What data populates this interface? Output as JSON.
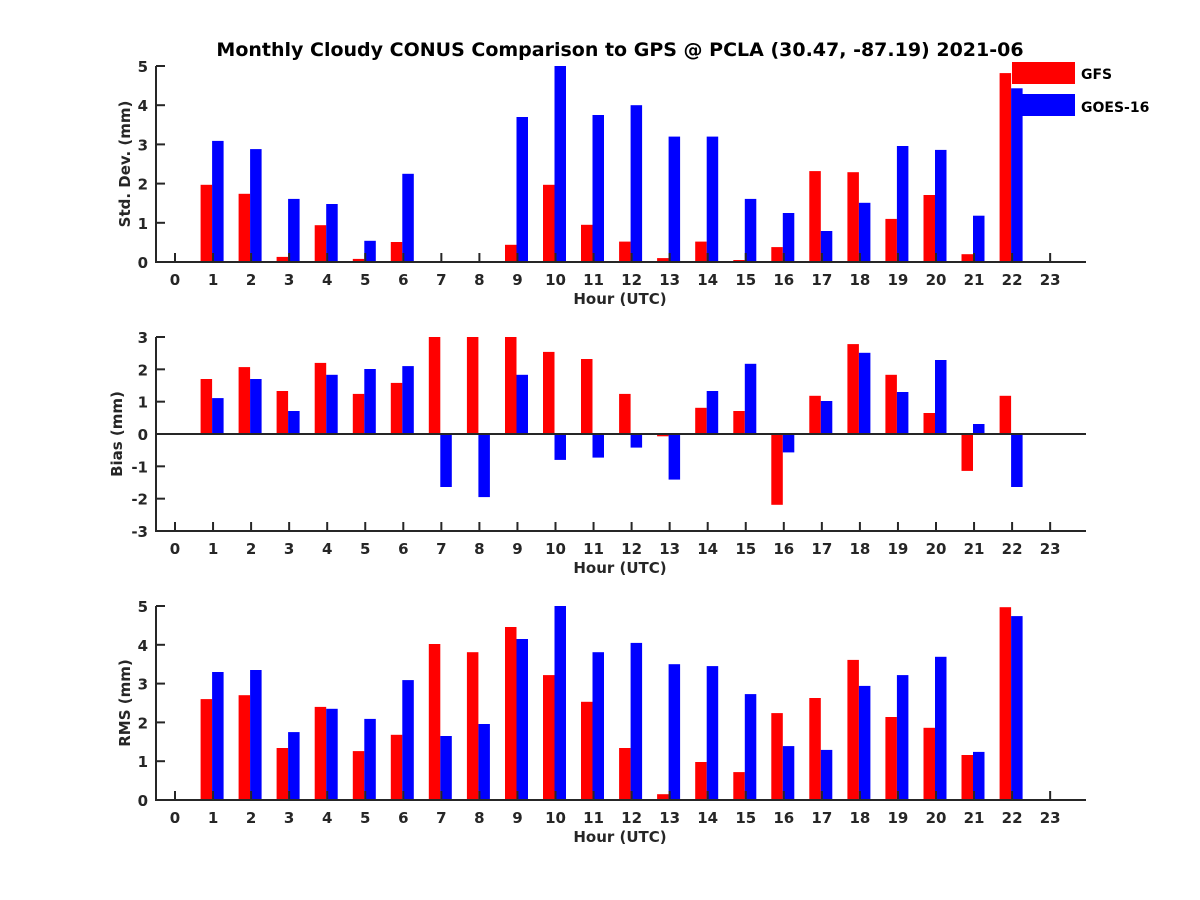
{
  "chart_data": [
    {
      "type": "bar",
      "title": "Monthly Cloudy CONUS Comparison to GPS @ PCLA (30.47, -87.19) 2021-06",
      "xlabel": "Hour (UTC)",
      "ylabel": "Std. Dev. (mm)",
      "ylim": [
        0,
        5
      ],
      "yticks": [
        0,
        1,
        2,
        3,
        4,
        5
      ],
      "categories": [
        "0",
        "1",
        "2",
        "3",
        "4",
        "5",
        "6",
        "7",
        "8",
        "9",
        "10",
        "11",
        "12",
        "13",
        "14",
        "15",
        "16",
        "17",
        "18",
        "19",
        "20",
        "21",
        "22",
        "23"
      ],
      "series": [
        {
          "name": "GFS",
          "color": "#ff0000",
          "values": [
            null,
            1.97,
            1.74,
            0.13,
            0.94,
            0.08,
            0.51,
            null,
            null,
            0.44,
            1.97,
            0.95,
            0.52,
            0.1,
            0.52,
            0.05,
            0.38,
            2.32,
            2.29,
            1.1,
            1.71,
            0.2,
            4.82,
            null
          ]
        },
        {
          "name": "GOES-16",
          "color": "#0000ff",
          "values": [
            null,
            3.09,
            2.88,
            1.61,
            1.48,
            0.54,
            2.25,
            null,
            null,
            3.7,
            5.0,
            3.75,
            4.0,
            3.2,
            3.2,
            1.61,
            1.25,
            0.79,
            1.51,
            2.96,
            2.86,
            1.18,
            4.43,
            null
          ]
        }
      ],
      "legend": {
        "placement": "top-right",
        "entries": [
          "GFS",
          "GOES-16"
        ]
      }
    },
    {
      "type": "bar",
      "xlabel": "Hour (UTC)",
      "ylabel": "Bias (mm)",
      "ylim": [
        -3,
        3
      ],
      "yticks": [
        -3,
        -2,
        -1,
        0,
        1,
        2,
        3
      ],
      "categories": [
        "0",
        "1",
        "2",
        "3",
        "4",
        "5",
        "6",
        "7",
        "8",
        "9",
        "10",
        "11",
        "12",
        "13",
        "14",
        "15",
        "16",
        "17",
        "18",
        "19",
        "20",
        "21",
        "22",
        "23"
      ],
      "series": [
        {
          "name": "GFS",
          "color": "#ff0000",
          "values": [
            null,
            1.7,
            2.07,
            1.33,
            2.2,
            1.24,
            1.58,
            3.0,
            3.0,
            3.0,
            2.54,
            2.32,
            1.24,
            -0.07,
            0.81,
            0.71,
            -2.19,
            1.18,
            2.78,
            1.83,
            0.65,
            -1.14,
            1.18,
            null
          ]
        },
        {
          "name": "GOES-16",
          "color": "#0000ff",
          "values": [
            null,
            1.11,
            1.7,
            0.71,
            1.83,
            2.01,
            2.1,
            -1.64,
            -1.95,
            1.83,
            -0.8,
            -0.73,
            -0.42,
            -1.41,
            1.33,
            2.17,
            -0.57,
            1.02,
            2.51,
            1.3,
            2.29,
            0.31,
            -1.64,
            null
          ]
        }
      ]
    },
    {
      "type": "bar",
      "xlabel": "Hour (UTC)",
      "ylabel": "RMS (mm)",
      "ylim": [
        0,
        5
      ],
      "yticks": [
        0,
        1,
        2,
        3,
        4,
        5
      ],
      "categories": [
        "0",
        "1",
        "2",
        "3",
        "4",
        "5",
        "6",
        "7",
        "8",
        "9",
        "10",
        "11",
        "12",
        "13",
        "14",
        "15",
        "16",
        "17",
        "18",
        "19",
        "20",
        "21",
        "22",
        "23"
      ],
      "series": [
        {
          "name": "GFS",
          "color": "#ff0000",
          "values": [
            null,
            2.6,
            2.7,
            1.34,
            2.4,
            1.26,
            1.68,
            4.02,
            3.81,
            4.46,
            3.22,
            2.53,
            1.34,
            0.15,
            0.98,
            0.72,
            2.24,
            2.63,
            3.61,
            2.14,
            1.86,
            1.16,
            4.97,
            null
          ]
        },
        {
          "name": "GOES-16",
          "color": "#0000ff",
          "values": [
            null,
            3.3,
            3.35,
            1.75,
            2.35,
            2.09,
            3.09,
            1.65,
            1.96,
            4.15,
            5.0,
            3.81,
            4.05,
            3.5,
            3.45,
            2.73,
            1.39,
            1.29,
            2.94,
            3.22,
            3.69,
            1.24,
            4.74,
            null
          ]
        }
      ]
    }
  ]
}
